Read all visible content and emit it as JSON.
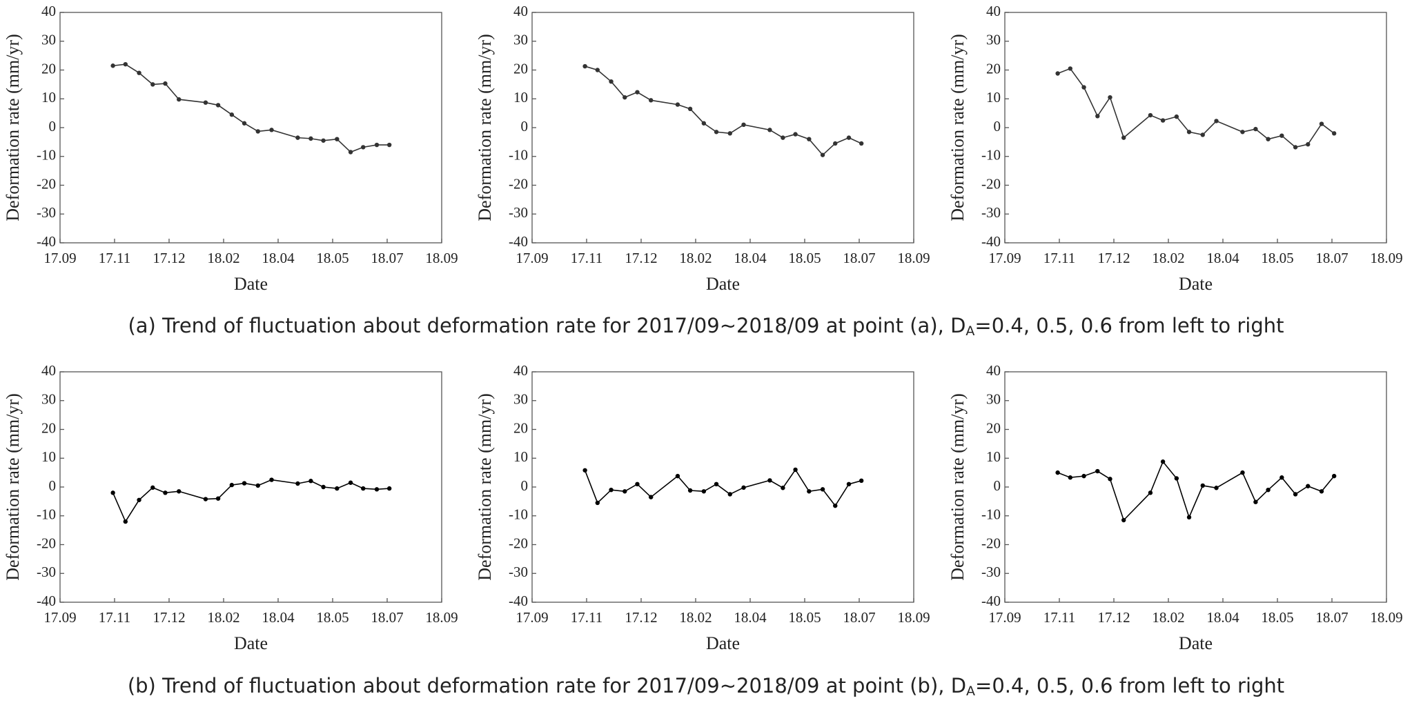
{
  "chart_data": [
    {
      "type": "line",
      "ylabel": "Deformation rate (mm/yr)",
      "xlabel": "Date",
      "color": "#333333",
      "x": [
        0.97,
        1.2,
        1.45,
        1.7,
        1.93,
        2.18,
        2.67,
        2.9,
        3.15,
        3.38,
        3.63,
        3.88,
        4.36,
        4.6,
        4.83,
        5.08,
        5.33,
        5.56,
        5.81,
        6.04
      ],
      "values": [
        21.5,
        22,
        19,
        15,
        15.3,
        9.8,
        8.7,
        7.8,
        4.5,
        1.5,
        -1.3,
        -0.8,
        -3.5,
        -3.8,
        -4.5,
        -4,
        -8.5,
        -6.8,
        -6,
        -6
      ],
      "xlim": [
        0,
        7
      ],
      "ylim": [
        -40,
        40
      ],
      "xticks": [
        {
          "value": 0,
          "label": "17.09"
        },
        {
          "value": 1,
          "label": "17.11"
        },
        {
          "value": 2,
          "label": "17.12"
        },
        {
          "value": 3,
          "label": "18.02"
        },
        {
          "value": 4,
          "label": "18.04"
        },
        {
          "value": 5,
          "label": "18.05"
        },
        {
          "value": 6,
          "label": "18.07"
        },
        {
          "value": 7,
          "label": "18.09"
        }
      ],
      "yticks": [
        -40,
        -30,
        -20,
        -10,
        0,
        10,
        20,
        30,
        40
      ]
    },
    {
      "type": "line",
      "ylabel": "Deformation rate (mm/yr)",
      "xlabel": "Date",
      "color": "#333333",
      "x": [
        0.97,
        1.2,
        1.45,
        1.7,
        1.93,
        2.18,
        2.67,
        2.9,
        3.15,
        3.38,
        3.63,
        3.88,
        4.36,
        4.6,
        4.83,
        5.08,
        5.33,
        5.56,
        5.81,
        6.04
      ],
      "values": [
        21.3,
        20,
        16,
        10.5,
        12.3,
        9.5,
        8,
        6.5,
        1.5,
        -1.5,
        -2,
        1,
        -0.8,
        -3.5,
        -2.3,
        -4,
        -9.5,
        -5.5,
        -3.5,
        -5.5
      ],
      "xlim": [
        0,
        7
      ],
      "ylim": [
        -40,
        40
      ],
      "xticks": [
        {
          "value": 0,
          "label": "17.09"
        },
        {
          "value": 1,
          "label": "17.11"
        },
        {
          "value": 2,
          "label": "17.12"
        },
        {
          "value": 3,
          "label": "18.02"
        },
        {
          "value": 4,
          "label": "18.04"
        },
        {
          "value": 5,
          "label": "18.05"
        },
        {
          "value": 6,
          "label": "18.07"
        },
        {
          "value": 7,
          "label": "18.09"
        }
      ],
      "yticks": [
        -40,
        -30,
        -20,
        -10,
        0,
        10,
        20,
        30,
        40
      ]
    },
    {
      "type": "line",
      "ylabel": "Deformation rate (mm/yr)",
      "xlabel": "Date",
      "color": "#333333",
      "x": [
        0.97,
        1.2,
        1.45,
        1.7,
        1.93,
        2.18,
        2.67,
        2.9,
        3.15,
        3.38,
        3.63,
        3.88,
        4.36,
        4.6,
        4.83,
        5.08,
        5.33,
        5.56,
        5.81,
        6.04
      ],
      "values": [
        18.8,
        20.5,
        14,
        4,
        10.5,
        -3.5,
        4.3,
        2.5,
        3.8,
        -1.5,
        -2.5,
        2.3,
        -1.5,
        -0.5,
        -4,
        -2.8,
        -6.8,
        -5.8,
        1.3,
        -2
      ],
      "xlim": [
        0,
        7
      ],
      "ylim": [
        -40,
        40
      ],
      "xticks": [
        {
          "value": 0,
          "label": "17.09"
        },
        {
          "value": 1,
          "label": "17.11"
        },
        {
          "value": 2,
          "label": "17.12"
        },
        {
          "value": 3,
          "label": "18.02"
        },
        {
          "value": 4,
          "label": "18.04"
        },
        {
          "value": 5,
          "label": "18.05"
        },
        {
          "value": 6,
          "label": "18.07"
        },
        {
          "value": 7,
          "label": "18.09"
        }
      ],
      "yticks": [
        -40,
        -30,
        -20,
        -10,
        0,
        10,
        20,
        30,
        40
      ]
    },
    {
      "type": "line",
      "ylabel": "Deformation rate (mm/yr)",
      "xlabel": "Date",
      "color": "#000000",
      "x": [
        0.97,
        1.2,
        1.45,
        1.7,
        1.93,
        2.18,
        2.67,
        2.9,
        3.15,
        3.38,
        3.63,
        3.88,
        4.36,
        4.6,
        4.83,
        5.08,
        5.33,
        5.56,
        5.81,
        6.04
      ],
      "values": [
        -2,
        -12,
        -4.5,
        -0.2,
        -2,
        -1.5,
        -4.2,
        -4,
        0.7,
        1.3,
        0.5,
        2.5,
        1.2,
        2.1,
        0,
        -0.5,
        1.5,
        -0.5,
        -0.8,
        -0.5
      ],
      "xlim": [
        0,
        7
      ],
      "ylim": [
        -40,
        40
      ],
      "xticks": [
        {
          "value": 0,
          "label": "17.09"
        },
        {
          "value": 1,
          "label": "17.11"
        },
        {
          "value": 2,
          "label": "17.12"
        },
        {
          "value": 3,
          "label": "18.02"
        },
        {
          "value": 4,
          "label": "18.04"
        },
        {
          "value": 5,
          "label": "18.05"
        },
        {
          "value": 6,
          "label": "18.07"
        },
        {
          "value": 7,
          "label": "18.09"
        }
      ],
      "yticks": [
        -40,
        -30,
        -20,
        -10,
        0,
        10,
        20,
        30,
        40
      ]
    },
    {
      "type": "line",
      "ylabel": "Deformation rate (mm/yr)",
      "xlabel": "Date",
      "color": "#000000",
      "x": [
        0.97,
        1.2,
        1.45,
        1.7,
        1.93,
        2.18,
        2.67,
        2.9,
        3.15,
        3.38,
        3.63,
        3.88,
        4.36,
        4.6,
        4.83,
        5.08,
        5.33,
        5.56,
        5.81,
        6.04
      ],
      "values": [
        5.8,
        -5.5,
        -1,
        -1.5,
        1,
        -3.5,
        3.8,
        -1.2,
        -1.5,
        1,
        -2.5,
        -0.2,
        2.3,
        -0.3,
        6,
        -1.5,
        -0.8,
        -6.5,
        1,
        2.2
      ],
      "xlim": [
        0,
        7
      ],
      "ylim": [
        -40,
        40
      ],
      "xticks": [
        {
          "value": 0,
          "label": "17.09"
        },
        {
          "value": 1,
          "label": "17.11"
        },
        {
          "value": 2,
          "label": "17.12"
        },
        {
          "value": 3,
          "label": "18.02"
        },
        {
          "value": 4,
          "label": "18.04"
        },
        {
          "value": 5,
          "label": "18.05"
        },
        {
          "value": 6,
          "label": "18.07"
        },
        {
          "value": 7,
          "label": "18.09"
        }
      ],
      "yticks": [
        -40,
        -30,
        -20,
        -10,
        0,
        10,
        20,
        30,
        40
      ]
    },
    {
      "type": "line",
      "ylabel": "Deformation rate (mm/yr)",
      "xlabel": "Date",
      "color": "#000000",
      "x": [
        0.97,
        1.2,
        1.45,
        1.7,
        1.93,
        2.18,
        2.67,
        2.9,
        3.15,
        3.38,
        3.63,
        3.88,
        4.36,
        4.6,
        4.83,
        5.08,
        5.33,
        5.56,
        5.81,
        6.04
      ],
      "values": [
        5,
        3.3,
        3.8,
        5.5,
        2.8,
        -11.5,
        -2,
        8.8,
        3,
        -10.5,
        0.5,
        -0.3,
        5,
        -5.2,
        -1,
        3.3,
        -2.5,
        0.3,
        -1.5,
        3.8
      ],
      "xlim": [
        0,
        7
      ],
      "ylim": [
        -40,
        40
      ],
      "xticks": [
        {
          "value": 0,
          "label": "17.09"
        },
        {
          "value": 1,
          "label": "17.11"
        },
        {
          "value": 2,
          "label": "17.12"
        },
        {
          "value": 3,
          "label": "18.02"
        },
        {
          "value": 4,
          "label": "18.04"
        },
        {
          "value": 5,
          "label": "18.05"
        },
        {
          "value": 6,
          "label": "18.07"
        },
        {
          "value": 7,
          "label": "18.09"
        }
      ],
      "yticks": [
        -40,
        -30,
        -20,
        -10,
        0,
        10,
        20,
        30,
        40
      ]
    }
  ],
  "captions": [
    {
      "text": "(a) Trend of fluctuation about deformation rate for 2017/09~2018/09 at point (a), D",
      "sub": "A",
      "rest": "=0.4, 0.5, 0.6 from left to right"
    },
    {
      "text": "(b) Trend of fluctuation about deformation rate for 2017/09~2018/09 at point (b), D",
      "sub": "A",
      "rest": "=0.4, 0.5, 0.6 from left to right"
    }
  ]
}
